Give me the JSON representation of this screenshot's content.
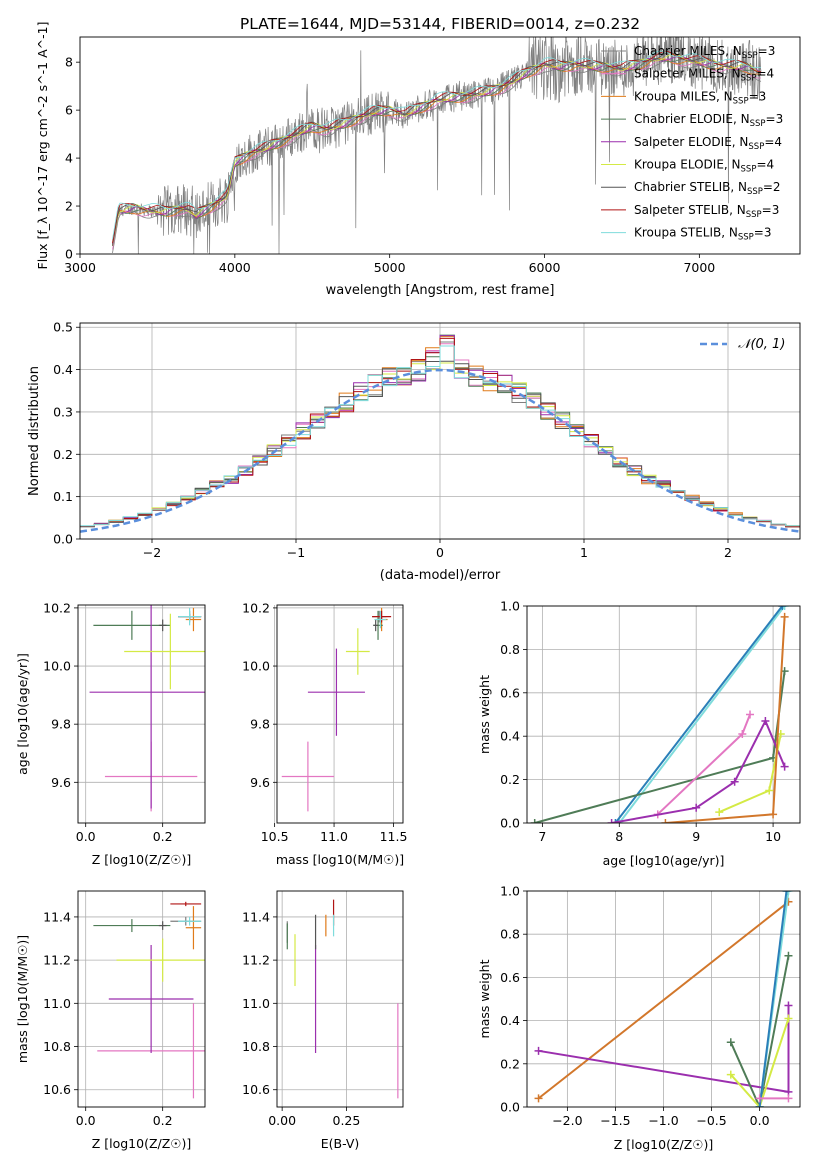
{
  "figure_title": "PLATE=1644, MJD=53144, FIBERID=0014, z=0.232",
  "colors": {
    "Chabrier MILES": "#7f7f7f",
    "Salpeter MILES": "#e377c2",
    "Kroupa MILES": "#e07b1a",
    "Chabrier ELODIE": "#4f7c57",
    "Salpeter ELODIE": "#9b2fae",
    "Kroupa ELODIE": "#d4ea45",
    "Chabrier STELIB": "#555555",
    "Salpeter STELIB": "#b01414",
    "Kroupa STELIB": "#7fdcdc",
    "normal": "#5b8fdc",
    "mw_pink": "#e377c2",
    "mw_orange": "#d2772b",
    "mw_purple": "#9b2fae",
    "mw_green": "#4f7c57",
    "mw_yellow": "#d4ea45",
    "mw_cyan": "#7fdcdc",
    "mw_blue": "#2a7fb8"
  },
  "chart_data": [
    {
      "type": "line",
      "id": "spectrum",
      "xlabel": "wavelength [Angstrom, rest frame]",
      "ylabel": "Flux [f_λ 10^-17 erg cm^-2 s^-1 A^-1]",
      "xlim": [
        3000,
        7650
      ],
      "ylim": [
        0,
        9.05
      ],
      "xticks": [
        3000,
        4000,
        5000,
        6000,
        7000
      ],
      "yticks": [
        0,
        2,
        4,
        6,
        8
      ],
      "grid": false,
      "legend": "right",
      "continuum": {
        "x": [
          3200,
          3250,
          3350,
          3450,
          3550,
          3650,
          3700,
          3750,
          3850,
          3950,
          4000,
          4100,
          4200,
          4300,
          4400,
          4500,
          4600,
          4700,
          4800,
          4900,
          5000,
          5100,
          5200,
          5300,
          5400,
          5500,
          5600,
          5700,
          5800,
          5900,
          6000,
          6100,
          6200,
          6300,
          6400,
          6500,
          6600,
          6700,
          6800,
          6900,
          7000,
          7100,
          7200,
          7300,
          7400
        ],
        "y": [
          0,
          1.8,
          1.9,
          1.8,
          1.75,
          1.9,
          1.85,
          1.6,
          2.0,
          2.4,
          3.8,
          4.2,
          4.4,
          4.7,
          5.0,
          5.3,
          5.2,
          5.4,
          5.7,
          5.9,
          6.0,
          5.8,
          6.1,
          6.4,
          6.5,
          6.6,
          6.7,
          6.9,
          7.2,
          7.6,
          7.9,
          7.8,
          7.9,
          7.8,
          7.8,
          7.7,
          7.9,
          8.1,
          8.2,
          8.1,
          8.0,
          7.9,
          7.8,
          7.8,
          7.5
        ]
      },
      "series": [
        {
          "name": "Chabrier MILES, N_SSP=3",
          "label_main": "Chabrier MILES, N",
          "sub": "SSP",
          "label_tail": "=3"
        },
        {
          "name": "Salpeter MILES, N_SSP=4",
          "label_main": "Salpeter MILES, N",
          "sub": "SSP",
          "label_tail": "=4"
        },
        {
          "name": "Kroupa MILES, N_SSP=3",
          "label_main": "Kroupa MILES, N",
          "sub": "SSP",
          "label_tail": "=3"
        },
        {
          "name": "Chabrier ELODIE, N_SSP=3",
          "label_main": "Chabrier ELODIE, N",
          "sub": "SSP",
          "label_tail": "=3"
        },
        {
          "name": "Salpeter ELODIE, N_SSP=4",
          "label_main": "Salpeter ELODIE, N",
          "sub": "SSP",
          "label_tail": "=4"
        },
        {
          "name": "Kroupa ELODIE, N_SSP=4",
          "label_main": "Kroupa ELODIE, N",
          "sub": "SSP",
          "label_tail": "=4"
        },
        {
          "name": "Chabrier STELIB, N_SSP=2",
          "label_main": "Chabrier STELIB, N",
          "sub": "SSP",
          "label_tail": "=2"
        },
        {
          "name": "Salpeter STELIB, N_SSP=3",
          "label_main": "Salpeter STELIB, N",
          "sub": "SSP",
          "label_tail": "=3"
        },
        {
          "name": "Kroupa STELIB, N_SSP=3",
          "label_main": "Kroupa STELIB, N",
          "sub": "SSP",
          "label_tail": "=3"
        }
      ]
    },
    {
      "type": "line",
      "id": "residuals",
      "xlabel": "(data-model)/error",
      "ylabel": "Normed distribution",
      "xlim": [
        -2.5,
        2.5
      ],
      "ylim": [
        0,
        0.51
      ],
      "xticks": [
        -2,
        -1,
        0,
        1,
        2
      ],
      "yticks": [
        0.0,
        0.1,
        0.2,
        0.3,
        0.4,
        0.5
      ],
      "grid": true,
      "legend": "top-right",
      "normal_curve": {
        "name": "N(0,1)",
        "label": "𝒩(0, 1)",
        "mean": 0,
        "sigma": 1
      },
      "bin_width": 0.1
    },
    {
      "type": "scatter",
      "id": "age_vs_Z",
      "xlabel": "Z [log10(Z/Z☉)]",
      "ylabel": "age [log10(age/yr)]",
      "xlim": [
        -0.02,
        0.31
      ],
      "ylim": [
        9.46,
        10.21
      ],
      "xticks": [
        0.0,
        0.2
      ],
      "yticks": [
        9.6,
        9.8,
        10.0,
        10.2
      ],
      "grid": true
    },
    {
      "type": "scatter",
      "id": "age_vs_mass",
      "xlabel": "mass [log10(M/M☉)]",
      "ylabel": "",
      "xlim": [
        10.52,
        11.58
      ],
      "ylim": [
        9.46,
        10.21
      ],
      "xticks": [
        10.5,
        11.0,
        11.5
      ],
      "yticks": [
        9.6,
        9.8,
        10.0,
        10.2
      ],
      "grid": true
    },
    {
      "type": "line",
      "id": "massweight_vs_age",
      "xlabel": "age [log10(age/yr)]",
      "ylabel": "mass weight",
      "xlim": [
        6.8,
        10.35
      ],
      "ylim": [
        0,
        1.0
      ],
      "xticks": [
        7,
        8,
        9,
        10
      ],
      "yticks": [
        0.0,
        0.2,
        0.4,
        0.6,
        0.8,
        1.0
      ],
      "grid": true
    },
    {
      "type": "scatter",
      "id": "mass_vs_Z",
      "xlabel": "Z [log10(Z/Z☉)]",
      "ylabel": "mass [log10(M/M☉)]",
      "xlim": [
        -0.02,
        0.31
      ],
      "ylim": [
        10.52,
        11.52
      ],
      "xticks": [
        0.0,
        0.2
      ],
      "yticks": [
        10.6,
        10.8,
        11.0,
        11.2,
        11.4
      ],
      "grid": true
    },
    {
      "type": "scatter",
      "id": "mass_vs_ebv",
      "xlabel": "E(B-V)",
      "ylabel": "",
      "xlim": [
        -0.02,
        0.47
      ],
      "ylim": [
        10.52,
        11.52
      ],
      "xticks": [
        0.0,
        0.25
      ],
      "yticks": [
        10.6,
        10.8,
        11.0,
        11.2,
        11.4
      ],
      "grid": true
    },
    {
      "type": "line",
      "id": "massweight_vs_Z",
      "xlabel": "Z [log10(Z/Z☉)]",
      "ylabel": "mass weight",
      "xlim": [
        -2.42,
        0.42
      ],
      "ylim": [
        0,
        1.0
      ],
      "xticks": [
        -2.0,
        -1.5,
        -1.0,
        -0.5,
        0.0
      ],
      "yticks": [
        0.0,
        0.2,
        0.4,
        0.6,
        0.8,
        1.0
      ],
      "grid": true
    }
  ],
  "panel_points": {
    "age_vs_Z": [
      {
        "c": "Chabrier MILES",
        "x": 0.27,
        "xe": 0.03,
        "y": 10.17,
        "ye": 0.02
      },
      {
        "c": "Salpeter MILES",
        "x": 0.17,
        "xe": 0.12,
        "y": 9.62,
        "ye": 0.12
      },
      {
        "c": "Kroupa MILES",
        "x": 0.28,
        "xe": 0.02,
        "y": 10.16,
        "ye": 0.04
      },
      {
        "c": "Chabrier ELODIE",
        "x": 0.12,
        "xe": 0.1,
        "y": 10.14,
        "ye": 0.05
      },
      {
        "c": "Salpeter ELODIE",
        "x": 0.17,
        "xe": 0.16,
        "y": 9.91,
        "ye": 0.4
      },
      {
        "c": "Kroupa ELODIE",
        "x": 0.22,
        "xe": 0.12,
        "y": 10.05,
        "ye": 0.13
      },
      {
        "c": "Chabrier STELIB",
        "x": 0.2,
        "xe": 0.01,
        "y": 10.14,
        "ye": 0.02
      },
      {
        "c": "Salpeter STELIB",
        "x": 0.27,
        "xe": 0.03,
        "y": 10.17,
        "ye": 0.01
      },
      {
        "c": "Kroupa STELIB",
        "x": 0.27,
        "xe": 0.03,
        "y": 10.17,
        "ye": 0.03
      }
    ],
    "age_vs_mass": [
      {
        "c": "Chabrier MILES",
        "x": 11.38,
        "xe": 0.06,
        "y": 10.17,
        "ye": 0.02
      },
      {
        "c": "Salpeter MILES",
        "x": 10.78,
        "xe": 0.22,
        "y": 9.62,
        "ye": 0.12
      },
      {
        "c": "Kroupa MILES",
        "x": 11.4,
        "xe": 0.05,
        "y": 10.16,
        "ye": 0.04
      },
      {
        "c": "Chabrier ELODIE",
        "x": 11.37,
        "xe": 0.04,
        "y": 10.14,
        "ye": 0.05
      },
      {
        "c": "Salpeter ELODIE",
        "x": 11.02,
        "xe": 0.24,
        "y": 9.91,
        "ye": 0.15
      },
      {
        "c": "Kroupa ELODIE",
        "x": 11.2,
        "xe": 0.1,
        "y": 10.05,
        "ye": 0.08
      },
      {
        "c": "Chabrier STELIB",
        "x": 11.35,
        "xe": 0.02,
        "y": 10.14,
        "ye": 0.02
      },
      {
        "c": "Salpeter STELIB",
        "x": 11.4,
        "xe": 0.08,
        "y": 10.17,
        "ye": 0.02
      },
      {
        "c": "Kroupa STELIB",
        "x": 11.39,
        "xe": 0.05,
        "y": 10.16,
        "ye": 0.03
      }
    ],
    "mass_vs_Z": [
      {
        "c": "Chabrier MILES",
        "x": 0.26,
        "xe": 0.04,
        "y": 11.38,
        "ye": 0.02
      },
      {
        "c": "Salpeter MILES",
        "x": 0.28,
        "xe": 0.25,
        "y": 10.78,
        "ye": 0.22
      },
      {
        "c": "Kroupa MILES",
        "x": 0.28,
        "xe": 0.02,
        "y": 11.35,
        "ye": 0.1
      },
      {
        "c": "Chabrier ELODIE",
        "x": 0.12,
        "xe": 0.1,
        "y": 11.36,
        "ye": 0.03
      },
      {
        "c": "Salpeter ELODIE",
        "x": 0.17,
        "xe": 0.11,
        "y": 11.02,
        "ye": 0.25
      },
      {
        "c": "Kroupa ELODIE",
        "x": 0.2,
        "xe": 0.12,
        "y": 11.2,
        "ye": 0.1
      },
      {
        "c": "Chabrier STELIB",
        "x": 0.2,
        "xe": 0.01,
        "y": 11.36,
        "ye": 0.02
      },
      {
        "c": "Salpeter STELIB",
        "x": 0.26,
        "xe": 0.04,
        "y": 11.46,
        "ye": 0.01
      },
      {
        "c": "Kroupa STELIB",
        "x": 0.27,
        "xe": 0.03,
        "y": 11.38,
        "ye": 0.02
      }
    ],
    "mass_vs_ebv": [
      {
        "c": "Chabrier MILES",
        "x": 0.02,
        "xe": 0.0,
        "y": 11.33,
        "ye": 0.05
      },
      {
        "c": "Salpeter MILES",
        "x": 0.45,
        "xe": 0.0,
        "y": 10.78,
        "ye": 0.22
      },
      {
        "c": "Kroupa MILES",
        "x": 0.17,
        "xe": 0.0,
        "y": 11.36,
        "ye": 0.05
      },
      {
        "c": "Chabrier ELODIE",
        "x": 0.02,
        "xe": 0.0,
        "y": 11.31,
        "ye": 0.06
      },
      {
        "c": "Salpeter ELODIE",
        "x": 0.13,
        "xe": 0.0,
        "y": 11.02,
        "ye": 0.25
      },
      {
        "c": "Kroupa ELODIE",
        "x": 0.05,
        "xe": 0.0,
        "y": 11.2,
        "ye": 0.12
      },
      {
        "c": "Chabrier STELIB",
        "x": 0.13,
        "xe": 0.0,
        "y": 11.33,
        "ye": 0.08
      },
      {
        "c": "Salpeter STELIB",
        "x": 0.2,
        "xe": 0.0,
        "y": 11.42,
        "ye": 0.06
      },
      {
        "c": "Kroupa STELIB",
        "x": 0.2,
        "xe": 0.0,
        "y": 11.36,
        "ye": 0.05
      }
    ],
    "massweight_vs_age": [
      {
        "c": "mw_cyan",
        "pts": [
          [
            8.0,
            0.0
          ],
          [
            10.15,
            1.0
          ]
        ]
      },
      {
        "c": "mw_blue",
        "pts": [
          [
            7.95,
            0.0
          ],
          [
            10.12,
            1.0
          ]
        ]
      },
      {
        "c": "mw_green",
        "pts": [
          [
            6.9,
            0.0
          ],
          [
            10.0,
            0.3
          ],
          [
            10.15,
            0.7
          ]
        ]
      },
      {
        "c": "mw_pink",
        "pts": [
          [
            8.5,
            0.04
          ],
          [
            9.6,
            0.41
          ],
          [
            9.7,
            0.5
          ]
        ]
      },
      {
        "c": "mw_purple",
        "pts": [
          [
            7.9,
            0.0
          ],
          [
            9.0,
            0.07
          ],
          [
            9.5,
            0.19
          ],
          [
            9.9,
            0.47
          ],
          [
            10.15,
            0.26
          ]
        ]
      },
      {
        "c": "mw_yellow",
        "pts": [
          [
            9.3,
            0.05
          ],
          [
            9.95,
            0.15
          ],
          [
            10.1,
            0.41
          ]
        ]
      },
      {
        "c": "mw_orange",
        "pts": [
          [
            8.6,
            0.0
          ],
          [
            10.0,
            0.04
          ],
          [
            10.15,
            0.95
          ]
        ]
      }
    ],
    "massweight_vs_Z": [
      {
        "c": "mw_orange",
        "pts": [
          [
            -2.3,
            0.04
          ],
          [
            0.3,
            0.95
          ]
        ]
      },
      {
        "c": "mw_purple",
        "pts": [
          [
            -2.3,
            0.26
          ],
          [
            0.3,
            0.07
          ],
          [
            0.3,
            0.47
          ]
        ]
      },
      {
        "c": "mw_green",
        "pts": [
          [
            -0.3,
            0.3
          ],
          [
            0.0,
            0.0
          ],
          [
            0.3,
            0.7
          ]
        ]
      },
      {
        "c": "mw_yellow",
        "pts": [
          [
            -0.3,
            0.15
          ],
          [
            0.0,
            0.0
          ],
          [
            0.3,
            0.41
          ]
        ]
      },
      {
        "c": "mw_cyan",
        "pts": [
          [
            0.0,
            0.0
          ],
          [
            0.3,
            1.0
          ]
        ]
      },
      {
        "c": "mw_blue",
        "pts": [
          [
            0.0,
            0.0
          ],
          [
            0.28,
            1.0
          ]
        ]
      },
      {
        "c": "mw_pink",
        "pts": [
          [
            0.0,
            0.04
          ],
          [
            0.3,
            0.04
          ]
        ]
      }
    ]
  }
}
